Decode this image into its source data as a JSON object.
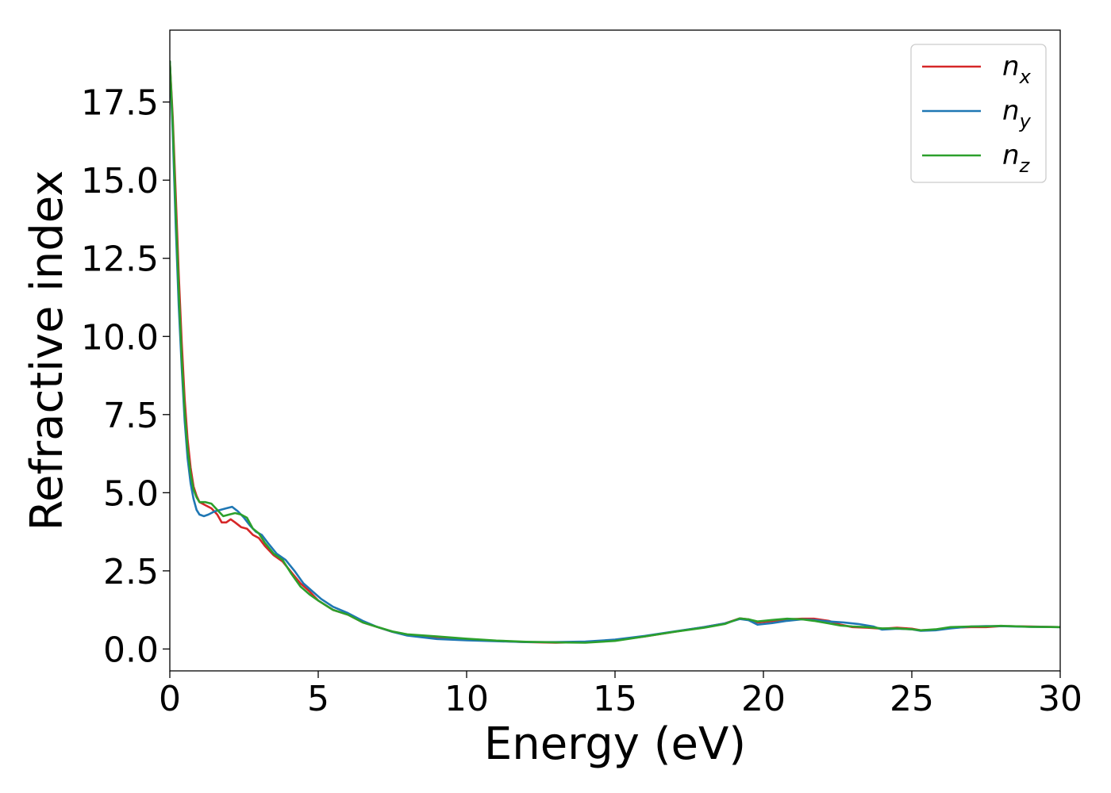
{
  "chart_data": {
    "type": "line",
    "title": "",
    "xlabel": "Energy (eV)",
    "ylabel": "Refractive index",
    "xlim": [
      0,
      30
    ],
    "ylim": [
      -0.7,
      19.8
    ],
    "xticks": [
      0,
      5,
      10,
      15,
      20,
      25,
      30
    ],
    "xtick_labels": [
      "0",
      "5",
      "10",
      "15",
      "20",
      "25",
      "30"
    ],
    "yticks": [
      0,
      2.5,
      5,
      7.5,
      10,
      12.5,
      15,
      17.5
    ],
    "ytick_labels": [
      "0.0",
      "2.5",
      "5.0",
      "7.5",
      "10.0",
      "12.5",
      "15.0",
      "17.5"
    ],
    "grid": false,
    "legend_position": "top-right",
    "series": [
      {
        "name": "n",
        "subscript": "x",
        "color": "#d62728",
        "points": [
          [
            0,
            18.8
          ],
          [
            0.1,
            17.0
          ],
          [
            0.2,
            14.5
          ],
          [
            0.3,
            12.0
          ],
          [
            0.4,
            9.8
          ],
          [
            0.5,
            8.0
          ],
          [
            0.6,
            6.7
          ],
          [
            0.7,
            5.8
          ],
          [
            0.8,
            5.2
          ],
          [
            0.9,
            4.9
          ],
          [
            1.0,
            4.7
          ],
          [
            1.2,
            4.6
          ],
          [
            1.4,
            4.5
          ],
          [
            1.6,
            4.3
          ],
          [
            1.75,
            4.05
          ],
          [
            1.9,
            4.05
          ],
          [
            2.05,
            4.15
          ],
          [
            2.2,
            4.05
          ],
          [
            2.4,
            3.9
          ],
          [
            2.6,
            3.85
          ],
          [
            2.8,
            3.65
          ],
          [
            3.0,
            3.55
          ],
          [
            3.2,
            3.3
          ],
          [
            3.5,
            3.0
          ],
          [
            3.8,
            2.8
          ],
          [
            4.1,
            2.45
          ],
          [
            4.4,
            2.1
          ],
          [
            4.7,
            1.85
          ],
          [
            5.0,
            1.55
          ],
          [
            5.5,
            1.25
          ],
          [
            6.0,
            1.1
          ],
          [
            6.5,
            0.85
          ],
          [
            7.0,
            0.7
          ],
          [
            7.5,
            0.55
          ],
          [
            8.0,
            0.45
          ],
          [
            9.0,
            0.38
          ],
          [
            10.0,
            0.32
          ],
          [
            11.0,
            0.26
          ],
          [
            12.0,
            0.22
          ],
          [
            13.0,
            0.2
          ],
          [
            14.0,
            0.22
          ],
          [
            15.0,
            0.28
          ],
          [
            16.0,
            0.4
          ],
          [
            17.0,
            0.55
          ],
          [
            18.0,
            0.7
          ],
          [
            18.7,
            0.82
          ],
          [
            19.2,
            0.98
          ],
          [
            19.5,
            0.95
          ],
          [
            19.8,
            0.85
          ],
          [
            20.2,
            0.88
          ],
          [
            20.8,
            0.95
          ],
          [
            21.3,
            0.97
          ],
          [
            21.7,
            0.97
          ],
          [
            22.2,
            0.9
          ],
          [
            22.6,
            0.78
          ],
          [
            23.0,
            0.7
          ],
          [
            23.5,
            0.68
          ],
          [
            24.0,
            0.65
          ],
          [
            24.5,
            0.68
          ],
          [
            25.0,
            0.65
          ],
          [
            25.3,
            0.6
          ],
          [
            25.8,
            0.62
          ],
          [
            26.3,
            0.68
          ],
          [
            27.0,
            0.7
          ],
          [
            27.5,
            0.7
          ],
          [
            28.0,
            0.73
          ],
          [
            29.0,
            0.72
          ],
          [
            30.0,
            0.7
          ]
        ]
      },
      {
        "name": "n",
        "subscript": "y",
        "color": "#1f77b4",
        "points": [
          [
            0,
            18.8
          ],
          [
            0.1,
            16.5
          ],
          [
            0.2,
            13.5
          ],
          [
            0.3,
            11.0
          ],
          [
            0.4,
            9.0
          ],
          [
            0.5,
            7.3
          ],
          [
            0.6,
            6.1
          ],
          [
            0.7,
            5.3
          ],
          [
            0.8,
            4.8
          ],
          [
            0.9,
            4.45
          ],
          [
            1.0,
            4.3
          ],
          [
            1.15,
            4.25
          ],
          [
            1.3,
            4.3
          ],
          [
            1.5,
            4.4
          ],
          [
            1.7,
            4.45
          ],
          [
            1.9,
            4.5
          ],
          [
            2.1,
            4.55
          ],
          [
            2.3,
            4.4
          ],
          [
            2.5,
            4.2
          ],
          [
            2.7,
            3.95
          ],
          [
            2.9,
            3.75
          ],
          [
            3.1,
            3.65
          ],
          [
            3.3,
            3.4
          ],
          [
            3.6,
            3.05
          ],
          [
            3.9,
            2.85
          ],
          [
            4.2,
            2.5
          ],
          [
            4.5,
            2.1
          ],
          [
            4.8,
            1.85
          ],
          [
            5.1,
            1.6
          ],
          [
            5.5,
            1.35
          ],
          [
            6.0,
            1.15
          ],
          [
            6.5,
            0.9
          ],
          [
            7.0,
            0.7
          ],
          [
            7.5,
            0.55
          ],
          [
            8.0,
            0.43
          ],
          [
            9.0,
            0.32
          ],
          [
            10.0,
            0.28
          ],
          [
            11.0,
            0.25
          ],
          [
            12.0,
            0.22
          ],
          [
            13.0,
            0.22
          ],
          [
            14.0,
            0.24
          ],
          [
            15.0,
            0.3
          ],
          [
            16.0,
            0.42
          ],
          [
            17.0,
            0.56
          ],
          [
            18.0,
            0.7
          ],
          [
            18.7,
            0.82
          ],
          [
            19.2,
            0.96
          ],
          [
            19.5,
            0.92
          ],
          [
            19.8,
            0.78
          ],
          [
            20.3,
            0.83
          ],
          [
            20.8,
            0.9
          ],
          [
            21.3,
            0.95
          ],
          [
            21.7,
            0.93
          ],
          [
            22.2,
            0.88
          ],
          [
            22.7,
            0.85
          ],
          [
            23.2,
            0.8
          ],
          [
            23.7,
            0.72
          ],
          [
            24.0,
            0.62
          ],
          [
            24.5,
            0.65
          ],
          [
            25.0,
            0.63
          ],
          [
            25.3,
            0.58
          ],
          [
            25.8,
            0.6
          ],
          [
            26.3,
            0.66
          ],
          [
            27.0,
            0.72
          ],
          [
            27.5,
            0.73
          ],
          [
            28.0,
            0.73
          ],
          [
            29.0,
            0.71
          ],
          [
            30.0,
            0.7
          ]
        ]
      },
      {
        "name": "n",
        "subscript": "z",
        "color": "#2ca02c",
        "points": [
          [
            0,
            18.8
          ],
          [
            0.1,
            16.8
          ],
          [
            0.2,
            14.0
          ],
          [
            0.3,
            11.5
          ],
          [
            0.4,
            9.3
          ],
          [
            0.5,
            7.6
          ],
          [
            0.6,
            6.4
          ],
          [
            0.7,
            5.6
          ],
          [
            0.8,
            5.1
          ],
          [
            0.9,
            4.85
          ],
          [
            1.0,
            4.7
          ],
          [
            1.2,
            4.7
          ],
          [
            1.4,
            4.65
          ],
          [
            1.6,
            4.45
          ],
          [
            1.8,
            4.25
          ],
          [
            2.0,
            4.3
          ],
          [
            2.2,
            4.35
          ],
          [
            2.4,
            4.3
          ],
          [
            2.6,
            4.2
          ],
          [
            2.8,
            3.85
          ],
          [
            3.0,
            3.7
          ],
          [
            3.2,
            3.4
          ],
          [
            3.5,
            3.05
          ],
          [
            3.8,
            2.85
          ],
          [
            4.1,
            2.4
          ],
          [
            4.4,
            2.0
          ],
          [
            4.7,
            1.75
          ],
          [
            5.0,
            1.55
          ],
          [
            5.5,
            1.25
          ],
          [
            6.0,
            1.1
          ],
          [
            6.5,
            0.85
          ],
          [
            7.0,
            0.7
          ],
          [
            7.5,
            0.56
          ],
          [
            8.0,
            0.47
          ],
          [
            9.0,
            0.4
          ],
          [
            10.0,
            0.33
          ],
          [
            11.0,
            0.27
          ],
          [
            12.0,
            0.23
          ],
          [
            13.0,
            0.21
          ],
          [
            14.0,
            0.2
          ],
          [
            15.0,
            0.26
          ],
          [
            16.0,
            0.4
          ],
          [
            17.0,
            0.55
          ],
          [
            18.0,
            0.68
          ],
          [
            18.7,
            0.8
          ],
          [
            19.2,
            0.98
          ],
          [
            19.5,
            0.95
          ],
          [
            19.8,
            0.88
          ],
          [
            20.3,
            0.93
          ],
          [
            20.8,
            0.97
          ],
          [
            21.3,
            0.95
          ],
          [
            21.7,
            0.9
          ],
          [
            22.2,
            0.82
          ],
          [
            22.6,
            0.75
          ],
          [
            23.0,
            0.72
          ],
          [
            23.5,
            0.7
          ],
          [
            24.0,
            0.66
          ],
          [
            24.5,
            0.66
          ],
          [
            25.0,
            0.63
          ],
          [
            25.3,
            0.6
          ],
          [
            25.8,
            0.63
          ],
          [
            26.3,
            0.7
          ],
          [
            27.0,
            0.72
          ],
          [
            27.5,
            0.72
          ],
          [
            28.0,
            0.74
          ],
          [
            29.0,
            0.71
          ],
          [
            30.0,
            0.7
          ]
        ]
      }
    ]
  }
}
